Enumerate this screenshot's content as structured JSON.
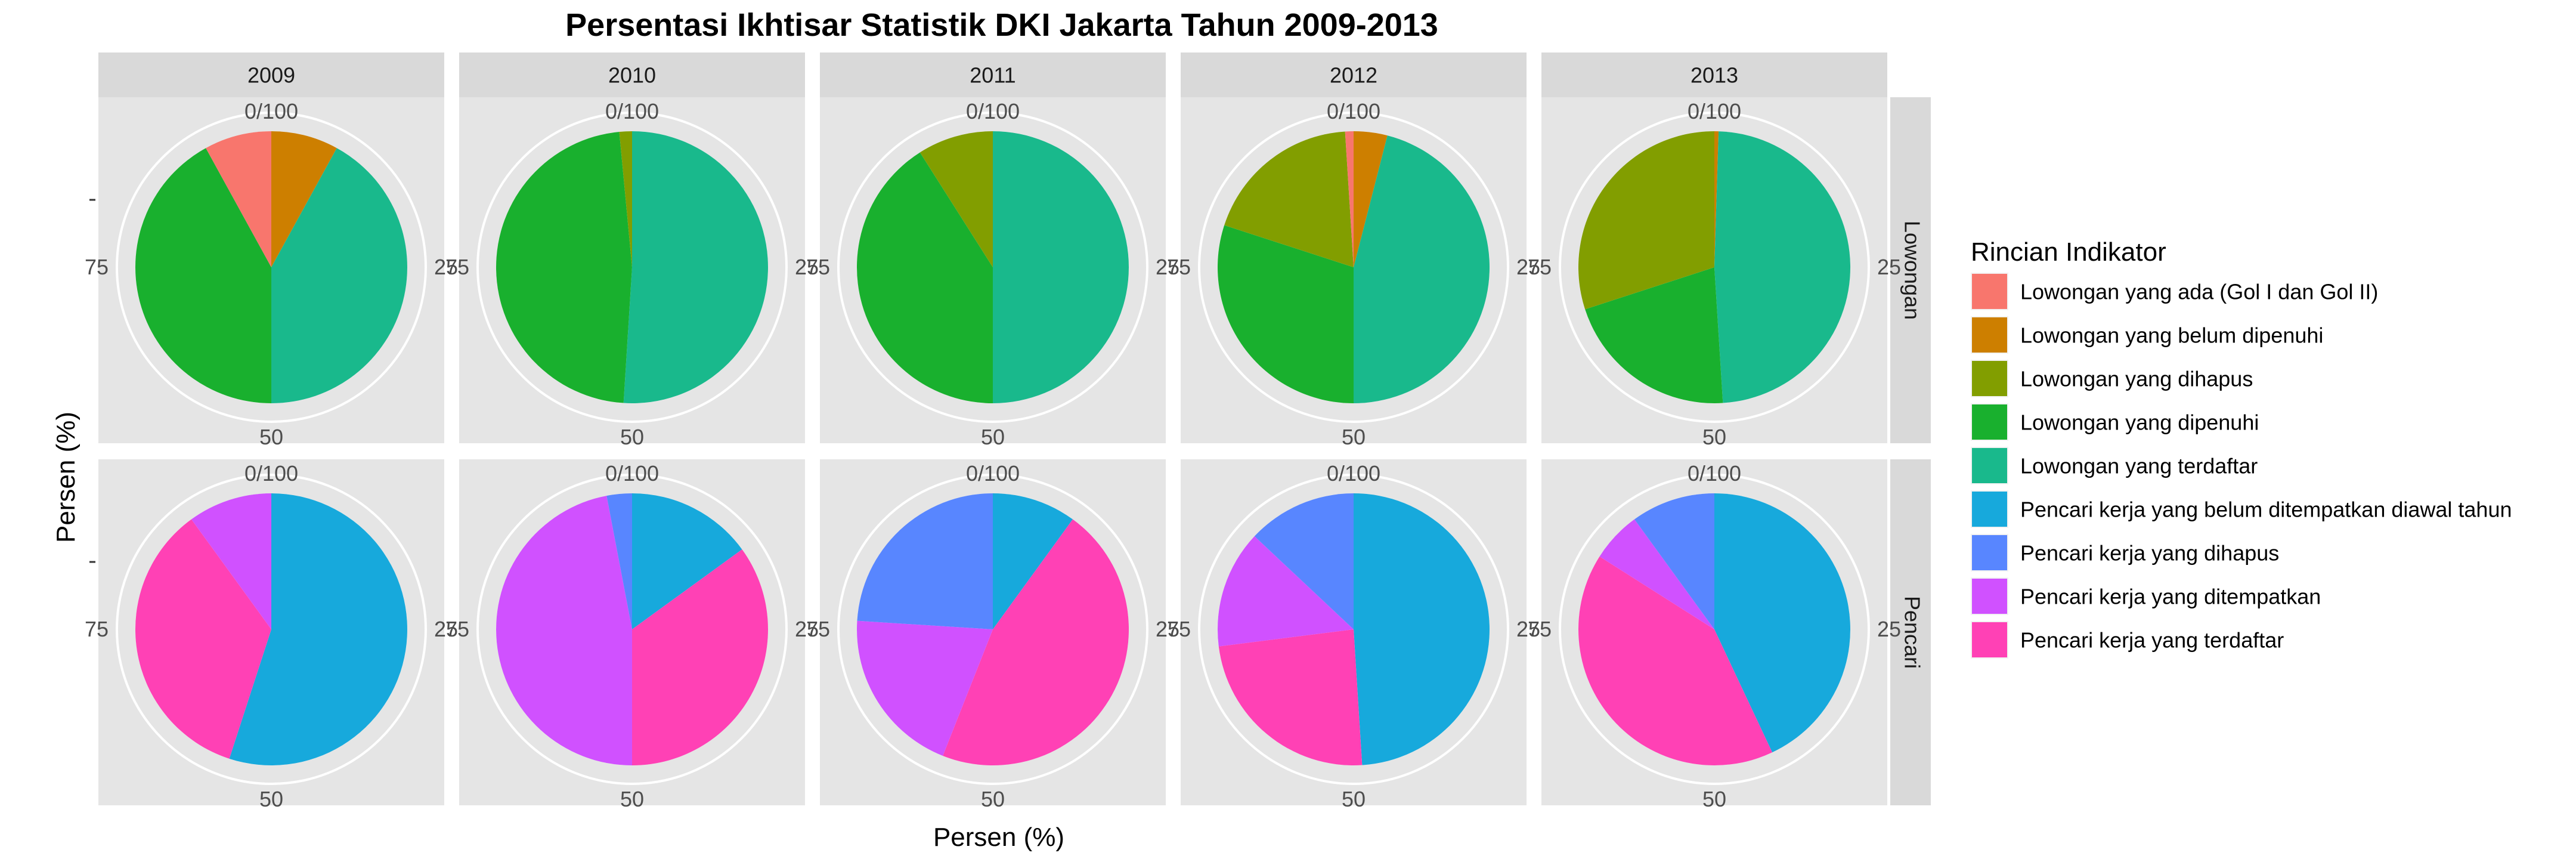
{
  "chart_data": {
    "type": "pie",
    "title": "Persentasi Ikhtisar Statistik DKI Jakarta Tahun 2009-2013",
    "xlabel": "Persen (%)",
    "ylabel": "Persen (%)",
    "angle_ticks": [
      "0/100",
      "25",
      "50",
      "75"
    ],
    "columns": [
      "2009",
      "2010",
      "2011",
      "2012",
      "2013"
    ],
    "rows": [
      "Lowongan",
      "Pencari"
    ],
    "legend": {
      "title": "Rincian Indikator",
      "placement": "right",
      "items": [
        {
          "label": "Lowongan yang ada (Gol I dan Gol II)",
          "color": "#F8766D"
        },
        {
          "label": "Lowongan yang belum dipenuhi",
          "color": "#CD9600"
        },
        {
          "label": "Lowongan yang dihapus",
          "color": "#7CAE00"
        },
        {
          "label": "Lowongan yang dipenuhi",
          "color": "#0CB702"
        },
        {
          "label": "Lowongan yang terdaftar",
          "color": "#00BE67"
        },
        {
          "label": "Pencari kerja yang belum ditempatkan diawal tahun",
          "color": "#00A9FF"
        },
        {
          "label": "Pencari kerja yang dihapus",
          "color": "#8494FF"
        },
        {
          "label": "Pencari kerja yang ditempatkan",
          "color": "#E68613"
        },
        {
          "label": "Pencari kerja yang terdaftar",
          "color": "#FF61CC"
        }
      ]
    },
    "panels": [
      {
        "row": "Lowongan",
        "column": "2009",
        "slices": [
          {
            "category": "Lowongan yang ada (Gol I dan Gol II)",
            "value": 0
          },
          {
            "category": "Lowongan yang belum dipenuhi",
            "value": 8
          },
          {
            "category": "Lowongan yang terdaftar",
            "value": 42
          },
          {
            "category": "Lowongan yang dipenuhi",
            "value": 42
          },
          {
            "category": "Lowongan yang ada (Gol I dan Gol II)",
            "value": 8
          }
        ]
      },
      {
        "row": "Lowongan",
        "column": "2010",
        "slices": [
          {
            "category": "Lowongan yang terdaftar",
            "value": 51
          },
          {
            "category": "Lowongan yang dipenuhi",
            "value": 47.5
          },
          {
            "category": "Lowongan yang dihapus",
            "value": 1.5
          }
        ]
      },
      {
        "row": "Lowongan",
        "column": "2011",
        "slices": [
          {
            "category": "Lowongan yang terdaftar",
            "value": 50
          },
          {
            "category": "Lowongan yang dipenuhi",
            "value": 41
          },
          {
            "category": "Lowongan yang dihapus",
            "value": 9
          }
        ]
      },
      {
        "row": "Lowongan",
        "column": "2012",
        "slices": [
          {
            "category": "Lowongan yang belum dipenuhi",
            "value": 4
          },
          {
            "category": "Lowongan yang terdaftar",
            "value": 46
          },
          {
            "category": "Lowongan yang dipenuhi",
            "value": 30
          },
          {
            "category": "Lowongan yang dihapus",
            "value": 19
          },
          {
            "category": "Lowongan yang ada (Gol I dan Gol II)",
            "value": 1
          }
        ]
      },
      {
        "row": "Lowongan",
        "column": "2013",
        "slices": [
          {
            "category": "Lowongan yang belum dipenuhi",
            "value": 0.5
          },
          {
            "category": "Lowongan yang terdaftar",
            "value": 48.5
          },
          {
            "category": "Lowongan yang dipenuhi",
            "value": 21
          },
          {
            "category": "Lowongan yang dihapus",
            "value": 30
          }
        ]
      },
      {
        "row": "Pencari",
        "column": "2009",
        "slices": [
          {
            "category": "Pencari kerja yang belum ditempatkan diawal tahun",
            "value": 55
          },
          {
            "category": "Pencari kerja yang terdaftar",
            "value": 35
          },
          {
            "category": "Pencari kerja yang ditempatkan",
            "value": 10
          }
        ]
      },
      {
        "row": "Pencari",
        "column": "2010",
        "slices": [
          {
            "category": "Pencari kerja yang belum ditempatkan diawal tahun",
            "value": 15
          },
          {
            "category": "Pencari kerja yang terdaftar",
            "value": 35
          },
          {
            "category": "Pencari kerja yang ditempatkan",
            "value": 47
          },
          {
            "category": "Pencari kerja yang dihapus",
            "value": 3
          }
        ]
      },
      {
        "row": "Pencari",
        "column": "2011",
        "slices": [
          {
            "category": "Pencari kerja yang belum ditempatkan diawal tahun",
            "value": 10
          },
          {
            "category": "Pencari kerja yang terdaftar",
            "value": 46
          },
          {
            "category": "Pencari kerja yang ditempatkan",
            "value": 20
          },
          {
            "category": "Pencari kerja yang dihapus",
            "value": 24
          }
        ]
      },
      {
        "row": "Pencari",
        "column": "2012",
        "slices": [
          {
            "category": "Pencari kerja yang belum ditempatkan diawal tahun",
            "value": 49
          },
          {
            "category": "Pencari kerja yang terdaftar",
            "value": 24
          },
          {
            "category": "Pencari kerja yang ditempatkan",
            "value": 14
          },
          {
            "category": "Pencari kerja yang dihapus",
            "value": 13
          }
        ]
      },
      {
        "row": "Pencari",
        "column": "2013",
        "slices": [
          {
            "category": "Pencari kerja yang belum ditempatkan diawal tahun",
            "value": 43
          },
          {
            "category": "Pencari kerja yang terdaftar",
            "value": 41
          },
          {
            "category": "Pencari kerja yang ditempatkan",
            "value": 6
          },
          {
            "category": "Pencari kerja yang dihapus",
            "value": 10
          }
        ]
      }
    ]
  }
}
